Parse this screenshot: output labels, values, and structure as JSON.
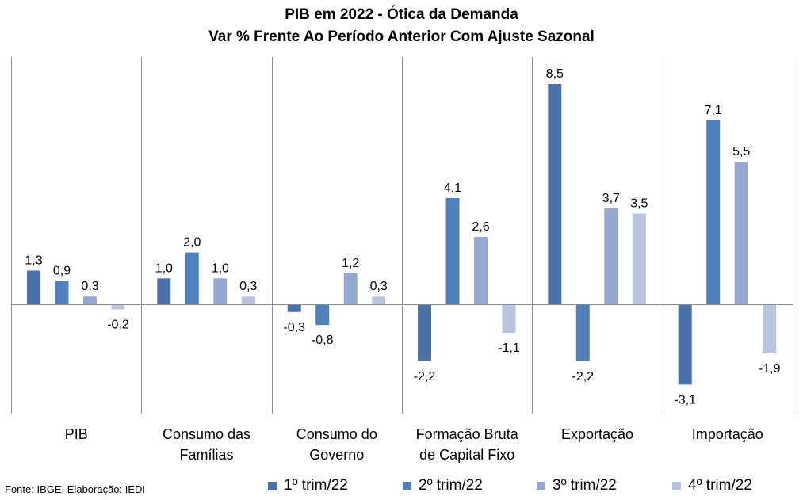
{
  "chart_data": {
    "type": "bar",
    "title": "PIB em 2022 - Ótica da Demanda",
    "subtitle": "Var % Frente Ao Período Anterior Com Ajuste Sazonal",
    "categories": [
      [
        "PIB"
      ],
      [
        "Consumo das",
        "Famílias"
      ],
      [
        "Consumo do",
        "Governo"
      ],
      [
        "Formação Bruta",
        "de Capital Fixo"
      ],
      [
        "Exportação"
      ],
      [
        "Importação"
      ]
    ],
    "series": [
      {
        "name": "1º trim/22",
        "color": "#4a72a8",
        "values": [
          1.3,
          1.0,
          -0.3,
          -2.2,
          8.5,
          -3.1
        ],
        "labels": [
          "1,3",
          "1,0",
          "-0,3",
          "-2,2",
          "8,5",
          "-3,1"
        ]
      },
      {
        "name": "2º trim/22",
        "color": "#4f81bd",
        "values": [
          0.9,
          2.0,
          -0.8,
          4.1,
          -2.2,
          7.1
        ],
        "labels": [
          "0,9",
          "2,0",
          "-0,8",
          "4,1",
          "-2,2",
          "7,1"
        ]
      },
      {
        "name": "3º trim/22",
        "color": "#95a8d1",
        "values": [
          0.3,
          1.0,
          1.2,
          2.6,
          3.7,
          5.5
        ],
        "labels": [
          "0,3",
          "1,0",
          "1,2",
          "2,6",
          "3,7",
          "5,5"
        ]
      },
      {
        "name": "4º trim/22",
        "color": "#b9c5e0",
        "values": [
          -0.2,
          0.3,
          0.3,
          -1.1,
          3.5,
          -1.9
        ],
        "labels": [
          "-0,2",
          "0,3",
          "0,3",
          "-1,1",
          "3,5",
          "-1,9"
        ]
      }
    ],
    "ylim": [
      -4.0,
      9.3
    ],
    "grid": "vertical category separators",
    "legend": "bottom"
  },
  "source_note": "Fonte: IBGE. Elaboração: IEDI"
}
